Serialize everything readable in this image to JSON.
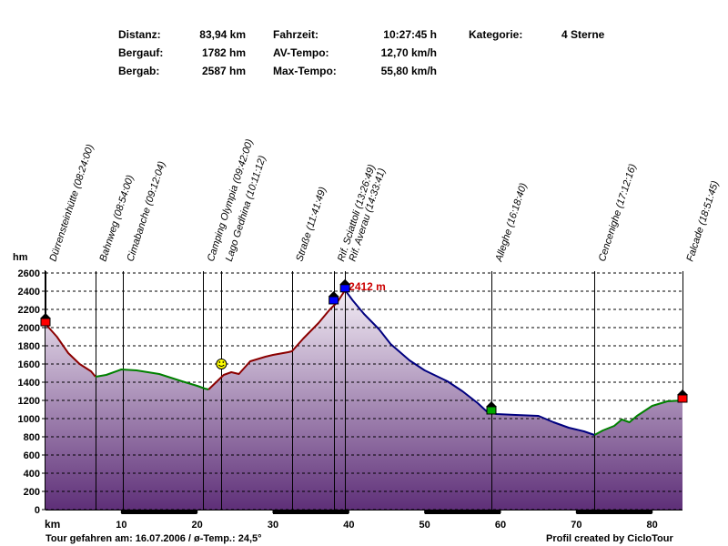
{
  "stats": {
    "distanz_label": "Distanz:",
    "distanz_value": "83,94 km",
    "bergauf_label": "Bergauf:",
    "bergauf_value": "1782 hm",
    "bergab_label": "Bergab:",
    "bergab_value": "2587 hm",
    "fahrzeit_label": "Fahrzeit:",
    "fahrzeit_value": "10:27:45 h",
    "avtempo_label": "AV-Tempo:",
    "avtempo_value": "12,70 km/h",
    "maxtempo_label": "Max-Tempo:",
    "maxtempo_value": "55,80 km/h",
    "kategorie_label": "Kategorie:",
    "kategorie_value": "4 Sterne"
  },
  "footer": {
    "left": "Tour gefahren am: 16.07.2006  /  ø-Temp.: 24,5°",
    "right": "Profil created by CicloTour"
  },
  "colors": {
    "fill_top": "#f4eef6",
    "fill_bottom": "#5e2f78",
    "uphill": "#8b0000",
    "downhill": "#00007f",
    "flat": "#008000",
    "grid": "#000000",
    "peak_label": "#cc0000"
  },
  "chart_data": {
    "type": "area",
    "xlabel": "km",
    "ylabel": "hm",
    "xlim": [
      0,
      84
    ],
    "ylim": [
      0,
      2600
    ],
    "x_ticks": [
      10,
      20,
      30,
      40,
      50,
      60,
      70,
      80
    ],
    "y_ticks": [
      0,
      200,
      400,
      600,
      800,
      1000,
      1200,
      1400,
      1600,
      1800,
      2000,
      2200,
      2400,
      2600
    ],
    "x_tick_labels": [
      "10",
      "20",
      "30",
      "40",
      "50",
      "60",
      "70",
      "80"
    ],
    "y_tick_labels": [
      "0",
      "200",
      "400",
      "600",
      "800",
      "1000",
      "1200",
      "1400",
      "1600",
      "1800",
      "2000",
      "2200",
      "2400",
      "2600"
    ],
    "grid": true,
    "x": [
      0,
      1.5,
      3,
      4.5,
      6,
      6.6,
      8,
      10,
      12,
      15,
      18,
      20,
      21,
      21.5,
      22.5,
      23.5,
      24.5,
      25.5,
      27,
      29,
      30,
      32,
      32.5,
      34,
      36,
      37.5,
      38.5,
      39.5,
      40.5,
      42,
      44,
      45.5,
      48,
      50,
      53,
      55,
      57,
      58.3,
      59.5,
      62,
      65,
      67,
      69,
      70,
      71,
      72.4,
      73.5,
      75,
      76,
      77,
      78,
      80,
      82,
      84
    ],
    "y": [
      2040,
      1900,
      1720,
      1600,
      1520,
      1460,
      1480,
      1540,
      1530,
      1490,
      1410,
      1360,
      1330,
      1320,
      1400,
      1480,
      1510,
      1490,
      1630,
      1680,
      1700,
      1730,
      1740,
      1880,
      2050,
      2200,
      2280,
      2412,
      2300,
      2150,
      1980,
      1820,
      1640,
      1530,
      1410,
      1300,
      1170,
      1070,
      1050,
      1040,
      1030,
      960,
      900,
      880,
      860,
      820,
      870,
      920,
      990,
      960,
      1030,
      1140,
      1190,
      1200
    ],
    "segments": [
      {
        "to_x": 6.6,
        "color": "uphill"
      },
      {
        "to_x": 21.5,
        "color": "flat"
      },
      {
        "to_x": 39.5,
        "color": "uphill"
      },
      {
        "to_x": 72.4,
        "color": "downhill"
      },
      {
        "to_x": 84,
        "color": "flat"
      }
    ],
    "waypoints": [
      {
        "label": "Dürrensteinhütte (08:24:00)",
        "km": 0.0,
        "elev": 2040,
        "marker": "home-red"
      },
      {
        "label": "Bahnweg (08:54:00)",
        "km": 6.6,
        "elev": null,
        "marker": null
      },
      {
        "label": "Cimabanche (09:12:04)",
        "km": 10.2,
        "elev": null,
        "marker": null
      },
      {
        "label": "Camping Olympia (09:42:00)",
        "km": 20.8,
        "elev": null,
        "marker": null
      },
      {
        "label": "Lago Gedhina (10:11:12)",
        "km": 23.2,
        "elev": 1540,
        "marker": "smiley"
      },
      {
        "label": "Straße (11:41:49)",
        "km": 32.5,
        "elev": null,
        "marker": null
      },
      {
        "label": "Rif. Sciattoli (13:26:49)",
        "km": 38.0,
        "elev": 2280,
        "marker": "home-blue"
      },
      {
        "label": "Rif. Averau (14:33:41)",
        "km": 39.5,
        "elev": 2412,
        "marker": "home-blue"
      },
      {
        "label": "Alleghe (16:18:40)",
        "km": 58.8,
        "elev": 1070,
        "marker": "home-green"
      },
      {
        "label": "Cencenighe (17:12:16)",
        "km": 72.4,
        "elev": null,
        "marker": null
      },
      {
        "label": "Falcade (18:51:45)",
        "km": 84.0,
        "elev": 1200,
        "marker": "home-red"
      }
    ],
    "annotations": [
      {
        "text": "2412 m",
        "km": 39.5,
        "elev": 2412
      }
    ]
  }
}
